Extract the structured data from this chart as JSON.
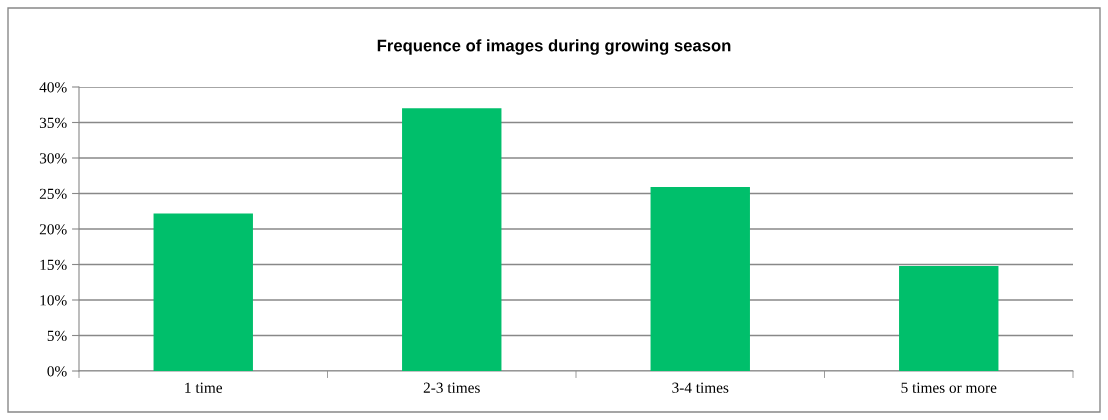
{
  "chart_data": {
    "type": "bar",
    "title": "Frequence of images during growing season",
    "categories": [
      "1 time",
      "2-3 times",
      "3-4 times",
      "5 times or more"
    ],
    "values": [
      22.2,
      37.0,
      25.9,
      14.8
    ],
    "color": "#00bf6b",
    "ylim": [
      0,
      40
    ],
    "yticks": [
      {
        "value": 0,
        "label": "0%"
      },
      {
        "value": 5,
        "label": "5%"
      },
      {
        "value": 10,
        "label": "10%"
      },
      {
        "value": 15,
        "label": "15%"
      },
      {
        "value": 20,
        "label": "20%"
      },
      {
        "value": 25,
        "label": "25%"
      },
      {
        "value": 30,
        "label": "30%"
      },
      {
        "value": 35,
        "label": "35%"
      },
      {
        "value": 40,
        "label": "40%"
      }
    ],
    "grid": "y"
  }
}
